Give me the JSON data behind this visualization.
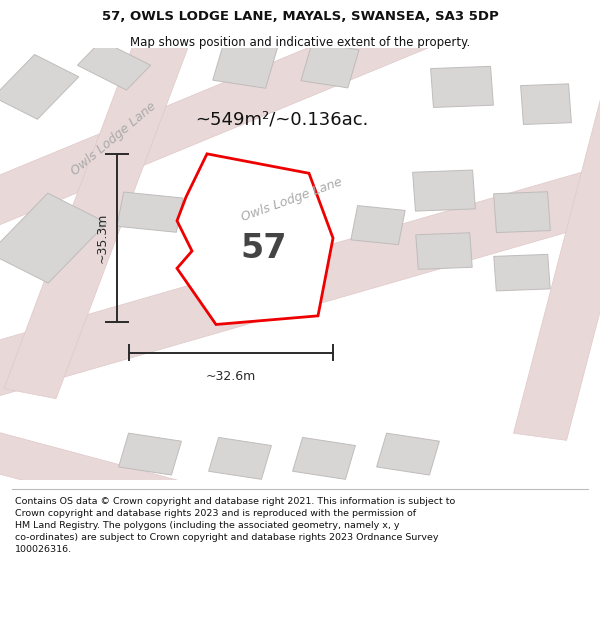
{
  "title": "57, OWLS LODGE LANE, MAYALS, SWANSEA, SA3 5DP",
  "subtitle": "Map shows position and indicative extent of the property.",
  "footer": "Contains OS data © Crown copyright and database right 2021. This information is subject to\nCrown copyright and database rights 2023 and is reproduced with the permission of\nHM Land Registry. The polygons (including the associated geometry, namely x, y\nco-ordinates) are subject to Crown copyright and database rights 2023 Ordnance Survey\n100026316.",
  "area_label": "~549m²/~0.136ac.",
  "number_label": "57",
  "dim_width": "~32.6m",
  "dim_height": "~35.3m",
  "road_label_1": "Owls Lodge Lane",
  "road_label_2": "Owls Lodge Lane",
  "map_bg": "#f0eeee",
  "road_fill": "#e8d8d8",
  "road_line": "#e0c8c8",
  "building_fill": "#d8d5d5",
  "building_edge": "#c0bcbc",
  "plot_fill": "#ffffff",
  "plot_edge": "#ee0000",
  "dim_color": "#2a2a2a",
  "title_color": "#111111",
  "footer_color": "#111111",
  "road_label_color": "#aaaaaa",
  "number_color": "#444444",
  "area_color": "#111111"
}
